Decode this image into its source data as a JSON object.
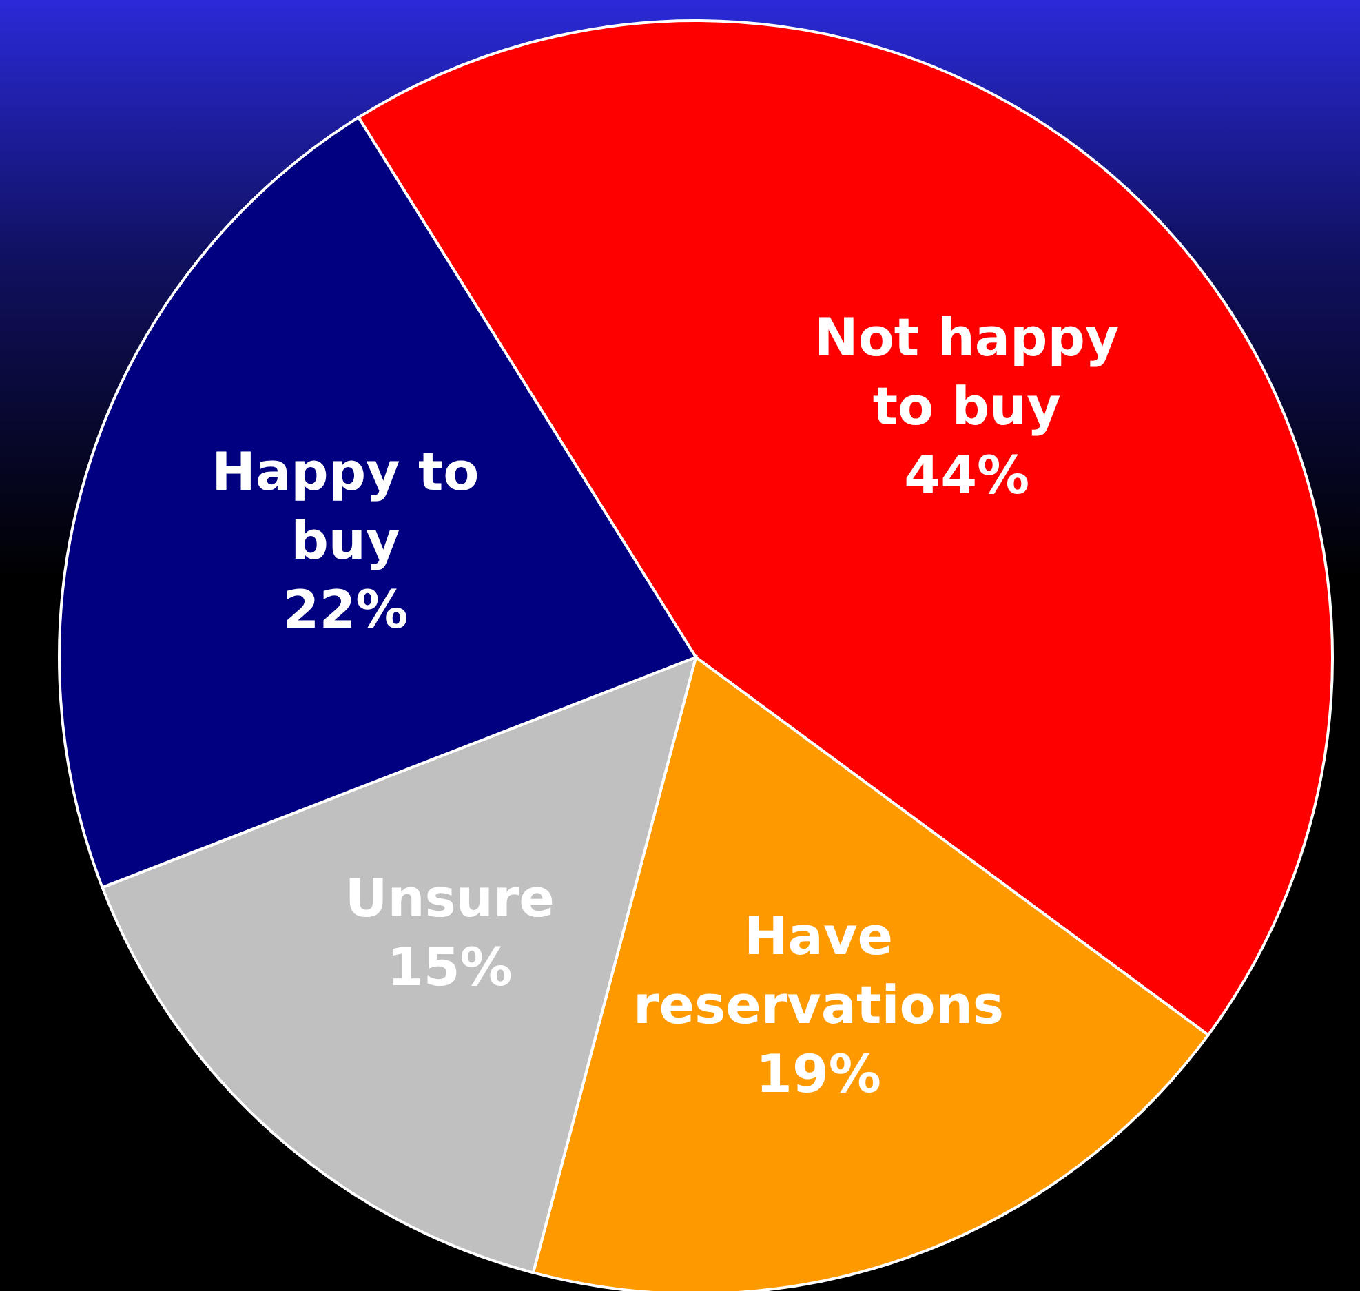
{
  "chart_data": {
    "type": "pie",
    "categories": [
      "Not happy to buy",
      "Have reservations",
      "Unsure",
      "Happy to buy"
    ],
    "values": [
      44,
      19,
      15,
      22
    ],
    "value_labels": [
      "44%",
      "19%",
      "15%",
      "22%"
    ],
    "colors": [
      "#ff0000",
      "#ff9900",
      "#c0c0c0",
      "#000080"
    ]
  }
}
